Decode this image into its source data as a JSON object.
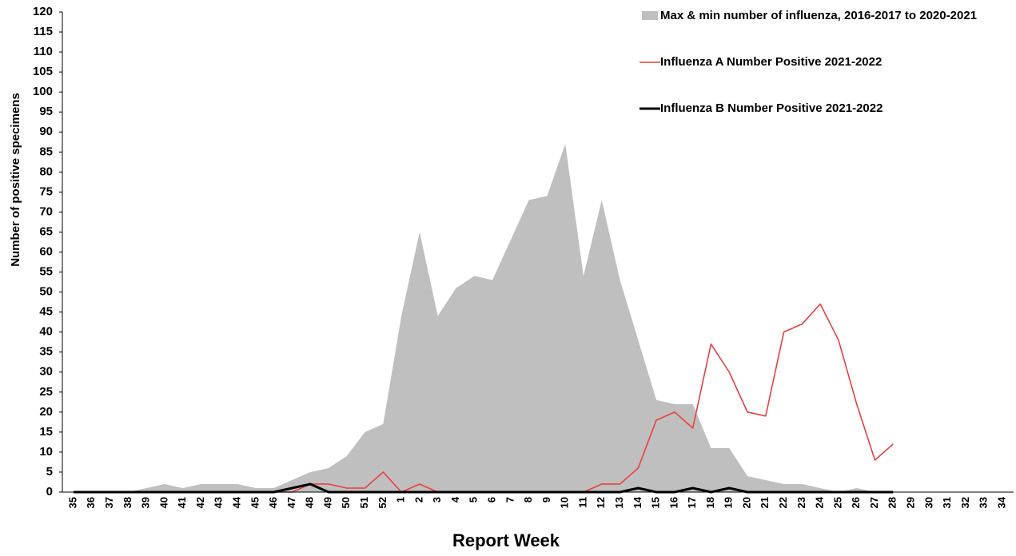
{
  "chart_data": {
    "type": "area-line",
    "x_label": "Report Week",
    "y_label": "Number of positive specimens",
    "categories": [
      "35",
      "36",
      "37",
      "38",
      "39",
      "40",
      "41",
      "42",
      "43",
      "44",
      "45",
      "46",
      "47",
      "48",
      "49",
      "50",
      "51",
      "52",
      "1",
      "2",
      "3",
      "4",
      "5",
      "6",
      "7",
      "8",
      "9",
      "10",
      "11",
      "12",
      "13",
      "14",
      "15",
      "16",
      "17",
      "18",
      "19",
      "20",
      "21",
      "22",
      "23",
      "24",
      "25",
      "26",
      "27",
      "28",
      "29",
      "30",
      "31",
      "32",
      "33",
      "34"
    ],
    "series": [
      {
        "name": "Max & min number of influenza, 2016-2017 to 2020-2021",
        "type": "area",
        "color": "#bfbfbf",
        "values": [
          0,
          0,
          0,
          0,
          1,
          2,
          1,
          2,
          2,
          2,
          1,
          1,
          3,
          5,
          6,
          9,
          15,
          17,
          44,
          65,
          44,
          51,
          54,
          53,
          63,
          73,
          74,
          87,
          54,
          73,
          53,
          38,
          23,
          22,
          22,
          11,
          11,
          4,
          3,
          2,
          2,
          1,
          0,
          1,
          0,
          0,
          0,
          0,
          0,
          0,
          0,
          0
        ]
      },
      {
        "name": "Influenza A Number Positive 2021-2022",
        "type": "line",
        "color": "#e8403f",
        "values": [
          0,
          0,
          0,
          0,
          0,
          0,
          0,
          0,
          0,
          0,
          0,
          0,
          0,
          2,
          2,
          1,
          1,
          5,
          0,
          2,
          0,
          0,
          0,
          0,
          0,
          0,
          0,
          0,
          0,
          2,
          2,
          6,
          18,
          20,
          16,
          37,
          30,
          20,
          19,
          40,
          42,
          47,
          38,
          22,
          8,
          12,
          null,
          null,
          null,
          null,
          null,
          null
        ]
      },
      {
        "name": "Influenza B Number Positive 2021-2022",
        "type": "line",
        "color": "#000000",
        "values": [
          0,
          0,
          0,
          0,
          0,
          0,
          0,
          0,
          0,
          0,
          0,
          0,
          1,
          2,
          0,
          0,
          0,
          0,
          0,
          0,
          0,
          0,
          0,
          0,
          0,
          0,
          0,
          0,
          0,
          0,
          0,
          1,
          0,
          0,
          1,
          0,
          1,
          0,
          0,
          0,
          0,
          0,
          0,
          0,
          0,
          0,
          null,
          null,
          null,
          null,
          null,
          null
        ]
      }
    ],
    "ylim": [
      0,
      120
    ],
    "yticks": [
      0,
      5,
      10,
      15,
      20,
      25,
      30,
      35,
      40,
      45,
      50,
      55,
      60,
      65,
      70,
      75,
      80,
      85,
      90,
      95,
      100,
      105,
      110,
      115,
      120
    ]
  }
}
